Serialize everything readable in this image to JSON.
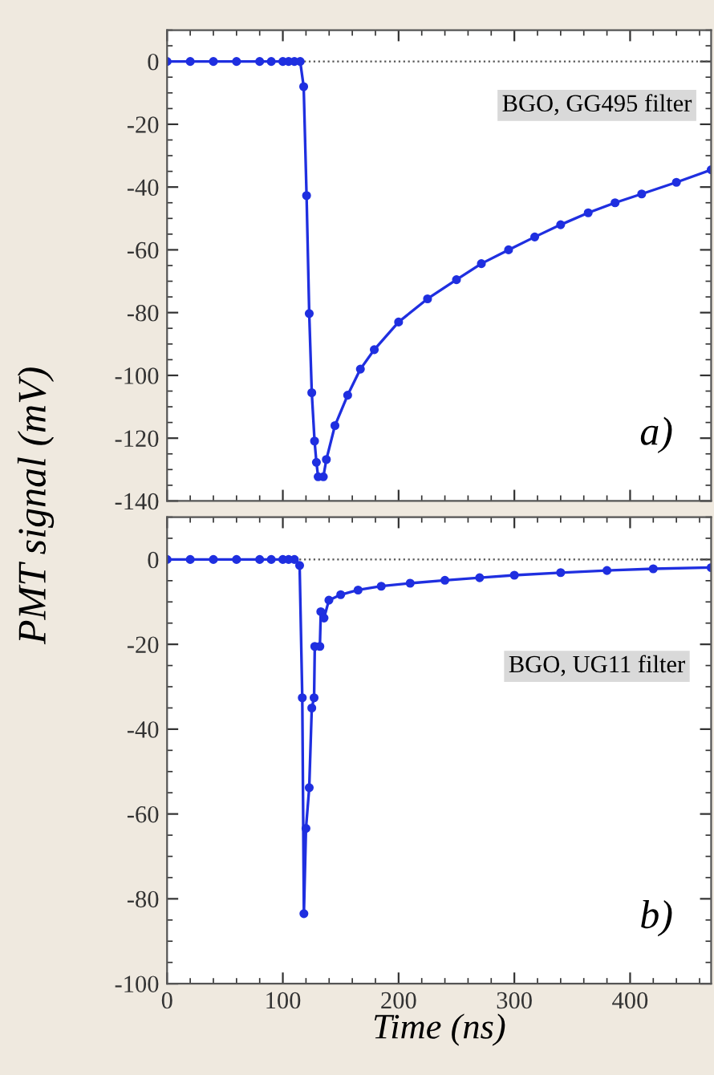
{
  "chart_data": [
    {
      "type": "line",
      "ylabel": "PMT signal (mV)",
      "xlim": [
        0,
        470
      ],
      "ylim": [
        -140,
        10
      ],
      "xticks": [
        0,
        100,
        200,
        300,
        400
      ],
      "yticks": [
        -140,
        -120,
        -100,
        -80,
        -60,
        -40,
        -20,
        0
      ],
      "tick_labels": "y",
      "grid": false,
      "marker": "circle",
      "line_style": "solid",
      "ref_lines": [
        {
          "axis": "y",
          "value": 0,
          "line_style": "dotted",
          "color": "#555555"
        }
      ],
      "annotations": [
        "BGO, GG495 filter",
        "a)"
      ],
      "series": [
        {
          "color": "#1f2fe0",
          "x": [
            0,
            20,
            40,
            60,
            80,
            90,
            100,
            105,
            110,
            115,
            118,
            120.5,
            122.8,
            125,
            127.4,
            129,
            130.5,
            135,
            137.6,
            145,
            156,
            167,
            179,
            200,
            225,
            250,
            271.5,
            295,
            317.6,
            340,
            363.8,
            387,
            410,
            440,
            470
          ],
          "values": [
            0,
            0,
            0,
            0,
            0,
            0,
            0,
            0,
            0,
            0,
            -8,
            -42.7,
            -80.3,
            -105.5,
            -120.9,
            -127.7,
            -132.3,
            -132.3,
            -126.8,
            -116,
            -106.3,
            -98,
            -91.8,
            -83,
            -75.6,
            -69.5,
            -64.4,
            -60,
            -55.9,
            -52,
            -48.2,
            -45,
            -42.2,
            -38.5,
            -34.5
          ]
        }
      ]
    },
    {
      "type": "line",
      "xlabel": "Time (ns)",
      "xlim": [
        0,
        470
      ],
      "ylim": [
        -100,
        10
      ],
      "xticks": [
        0,
        100,
        200,
        300,
        400
      ],
      "yticks": [
        -100,
        -80,
        -60,
        -40,
        -20,
        0
      ],
      "grid": false,
      "marker": "circle",
      "line_style": "solid",
      "ref_lines": [
        {
          "axis": "y",
          "value": 0,
          "line_style": "dotted",
          "color": "#555555"
        }
      ],
      "annotations": [
        "BGO, UG11 filter",
        "b)"
      ],
      "series": [
        {
          "color": "#1f2fe0",
          "x": [
            0,
            20,
            40,
            60,
            80,
            90,
            100,
            105,
            110,
            114.5,
            116.8,
            118.2,
            120,
            122.8,
            125,
            127,
            127.6,
            132,
            132.8,
            135.6,
            139.8,
            150,
            165,
            185,
            210,
            240,
            270,
            300,
            340,
            380,
            420,
            470
          ],
          "values": [
            0,
            0,
            0,
            0,
            0,
            0,
            0,
            0,
            0,
            -1.4,
            -32.6,
            -83.5,
            -63.4,
            -53.8,
            -35,
            -32.6,
            -20.5,
            -20.5,
            -12.3,
            -13.8,
            -9.6,
            -8.3,
            -7.2,
            -6.3,
            -5.6,
            -4.9,
            -4.3,
            -3.7,
            -3.1,
            -2.6,
            -2.2,
            -1.9
          ]
        }
      ]
    }
  ]
}
